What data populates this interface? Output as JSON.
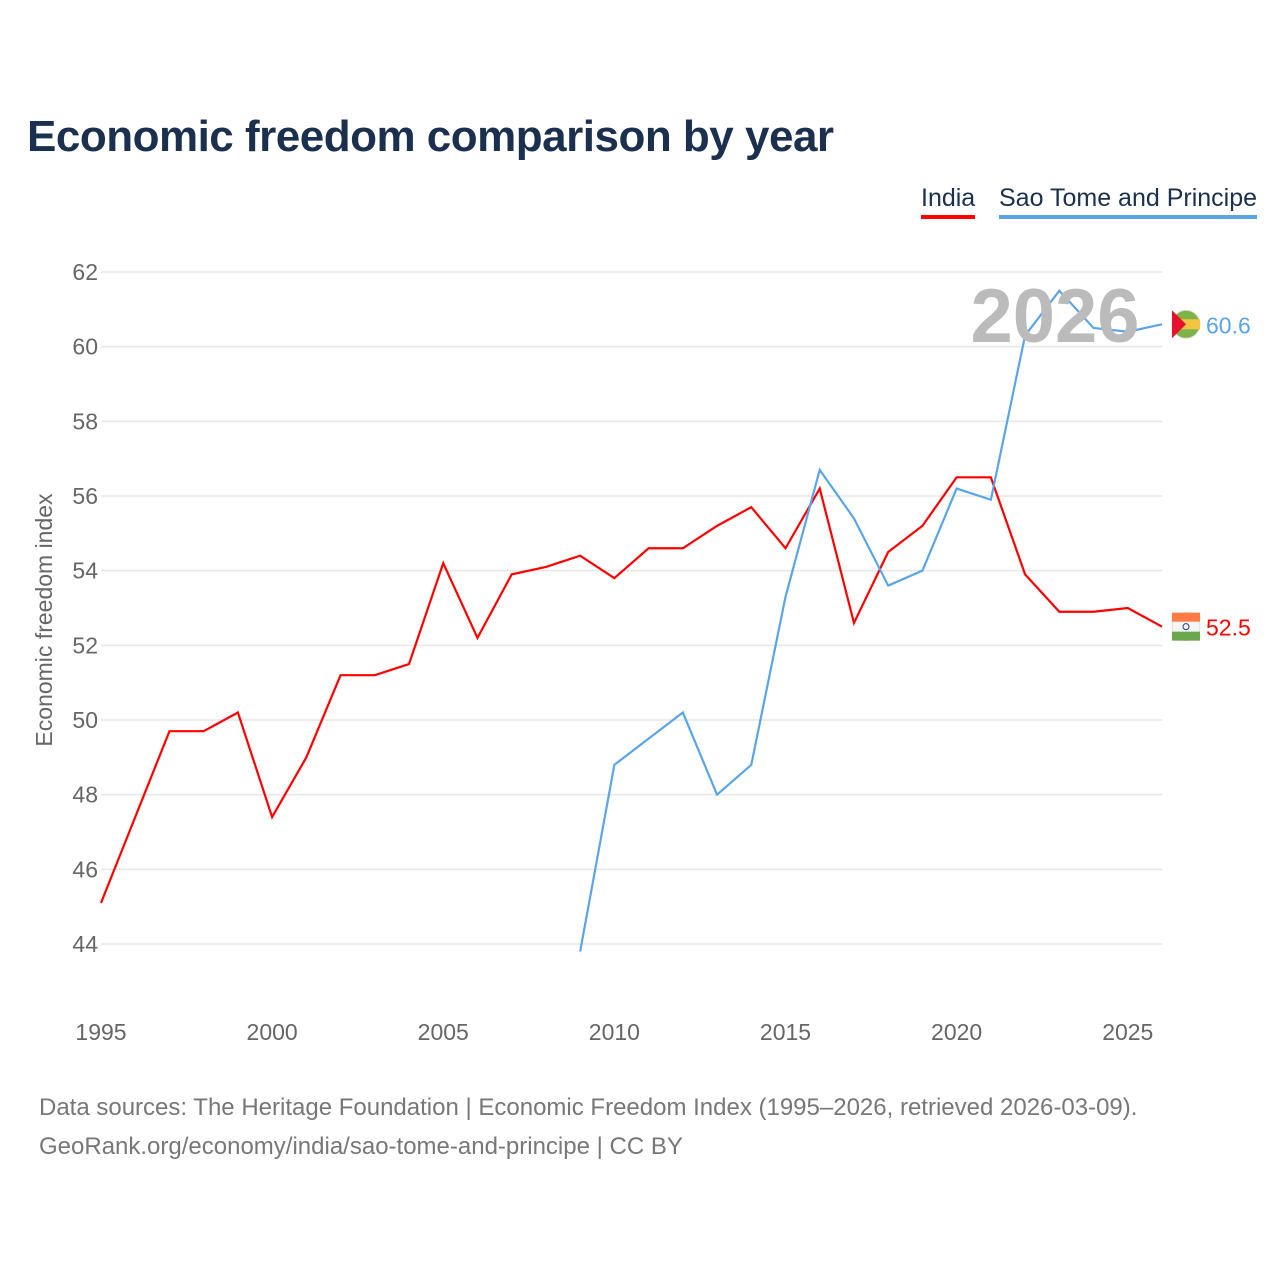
{
  "title": "Economic freedom comparison by year",
  "legend": [
    {
      "label": "India",
      "color": "#ff0000"
    },
    {
      "label": "Sao Tome and Principe",
      "color": "#5aa5ea"
    }
  ],
  "watermark_year": "2026",
  "source_line1": "Data sources: The Heritage Foundation | Economic Freedom Index (1995–2026, retrieved 2026-03-09).",
  "source_line2": "GeoRank.org/economy/india/sao-tome-and-principe | CC BY",
  "chart_data": {
    "type": "line",
    "title": "Economic freedom comparison by year",
    "xlabel": "",
    "ylabel": "Economic freedom index",
    "xlim": [
      1995,
      2026
    ],
    "ylim": [
      44,
      62
    ],
    "xticks": [
      1995,
      2000,
      2005,
      2010,
      2015,
      2020,
      2025
    ],
    "yticks": [
      44,
      46,
      48,
      50,
      52,
      54,
      56,
      58,
      60,
      62
    ],
    "grid": true,
    "legend_position": "top-right",
    "series": [
      {
        "name": "India",
        "color": "#ff0000",
        "end_label": "52.5",
        "x": [
          1995,
          1996,
          1997,
          1998,
          1999,
          2000,
          2001,
          2002,
          2003,
          2004,
          2005,
          2006,
          2007,
          2008,
          2009,
          2010,
          2011,
          2012,
          2013,
          2014,
          2015,
          2016,
          2017,
          2018,
          2019,
          2020,
          2021,
          2022,
          2023,
          2024,
          2025,
          2026
        ],
        "y": [
          45.1,
          47.4,
          49.7,
          49.7,
          50.2,
          47.4,
          49.0,
          51.2,
          51.2,
          51.5,
          54.2,
          52.2,
          53.9,
          54.1,
          54.4,
          53.8,
          54.6,
          54.6,
          55.2,
          55.7,
          54.6,
          56.2,
          52.6,
          54.5,
          55.2,
          56.5,
          56.5,
          53.9,
          52.9,
          52.9,
          53.0,
          52.5
        ]
      },
      {
        "name": "Sao Tome and Principe",
        "color": "#5aa5ea",
        "end_label": "60.6",
        "x": [
          2009,
          2010,
          2011,
          2012,
          2013,
          2014,
          2015,
          2016,
          2017,
          2018,
          2019,
          2020,
          2021,
          2022,
          2023,
          2024,
          2025,
          2026
        ],
        "y": [
          43.8,
          48.8,
          49.5,
          50.2,
          48.0,
          48.8,
          53.3,
          56.7,
          55.4,
          53.6,
          54.0,
          56.2,
          55.9,
          60.3,
          61.5,
          60.5,
          60.4,
          60.6
        ]
      }
    ]
  }
}
